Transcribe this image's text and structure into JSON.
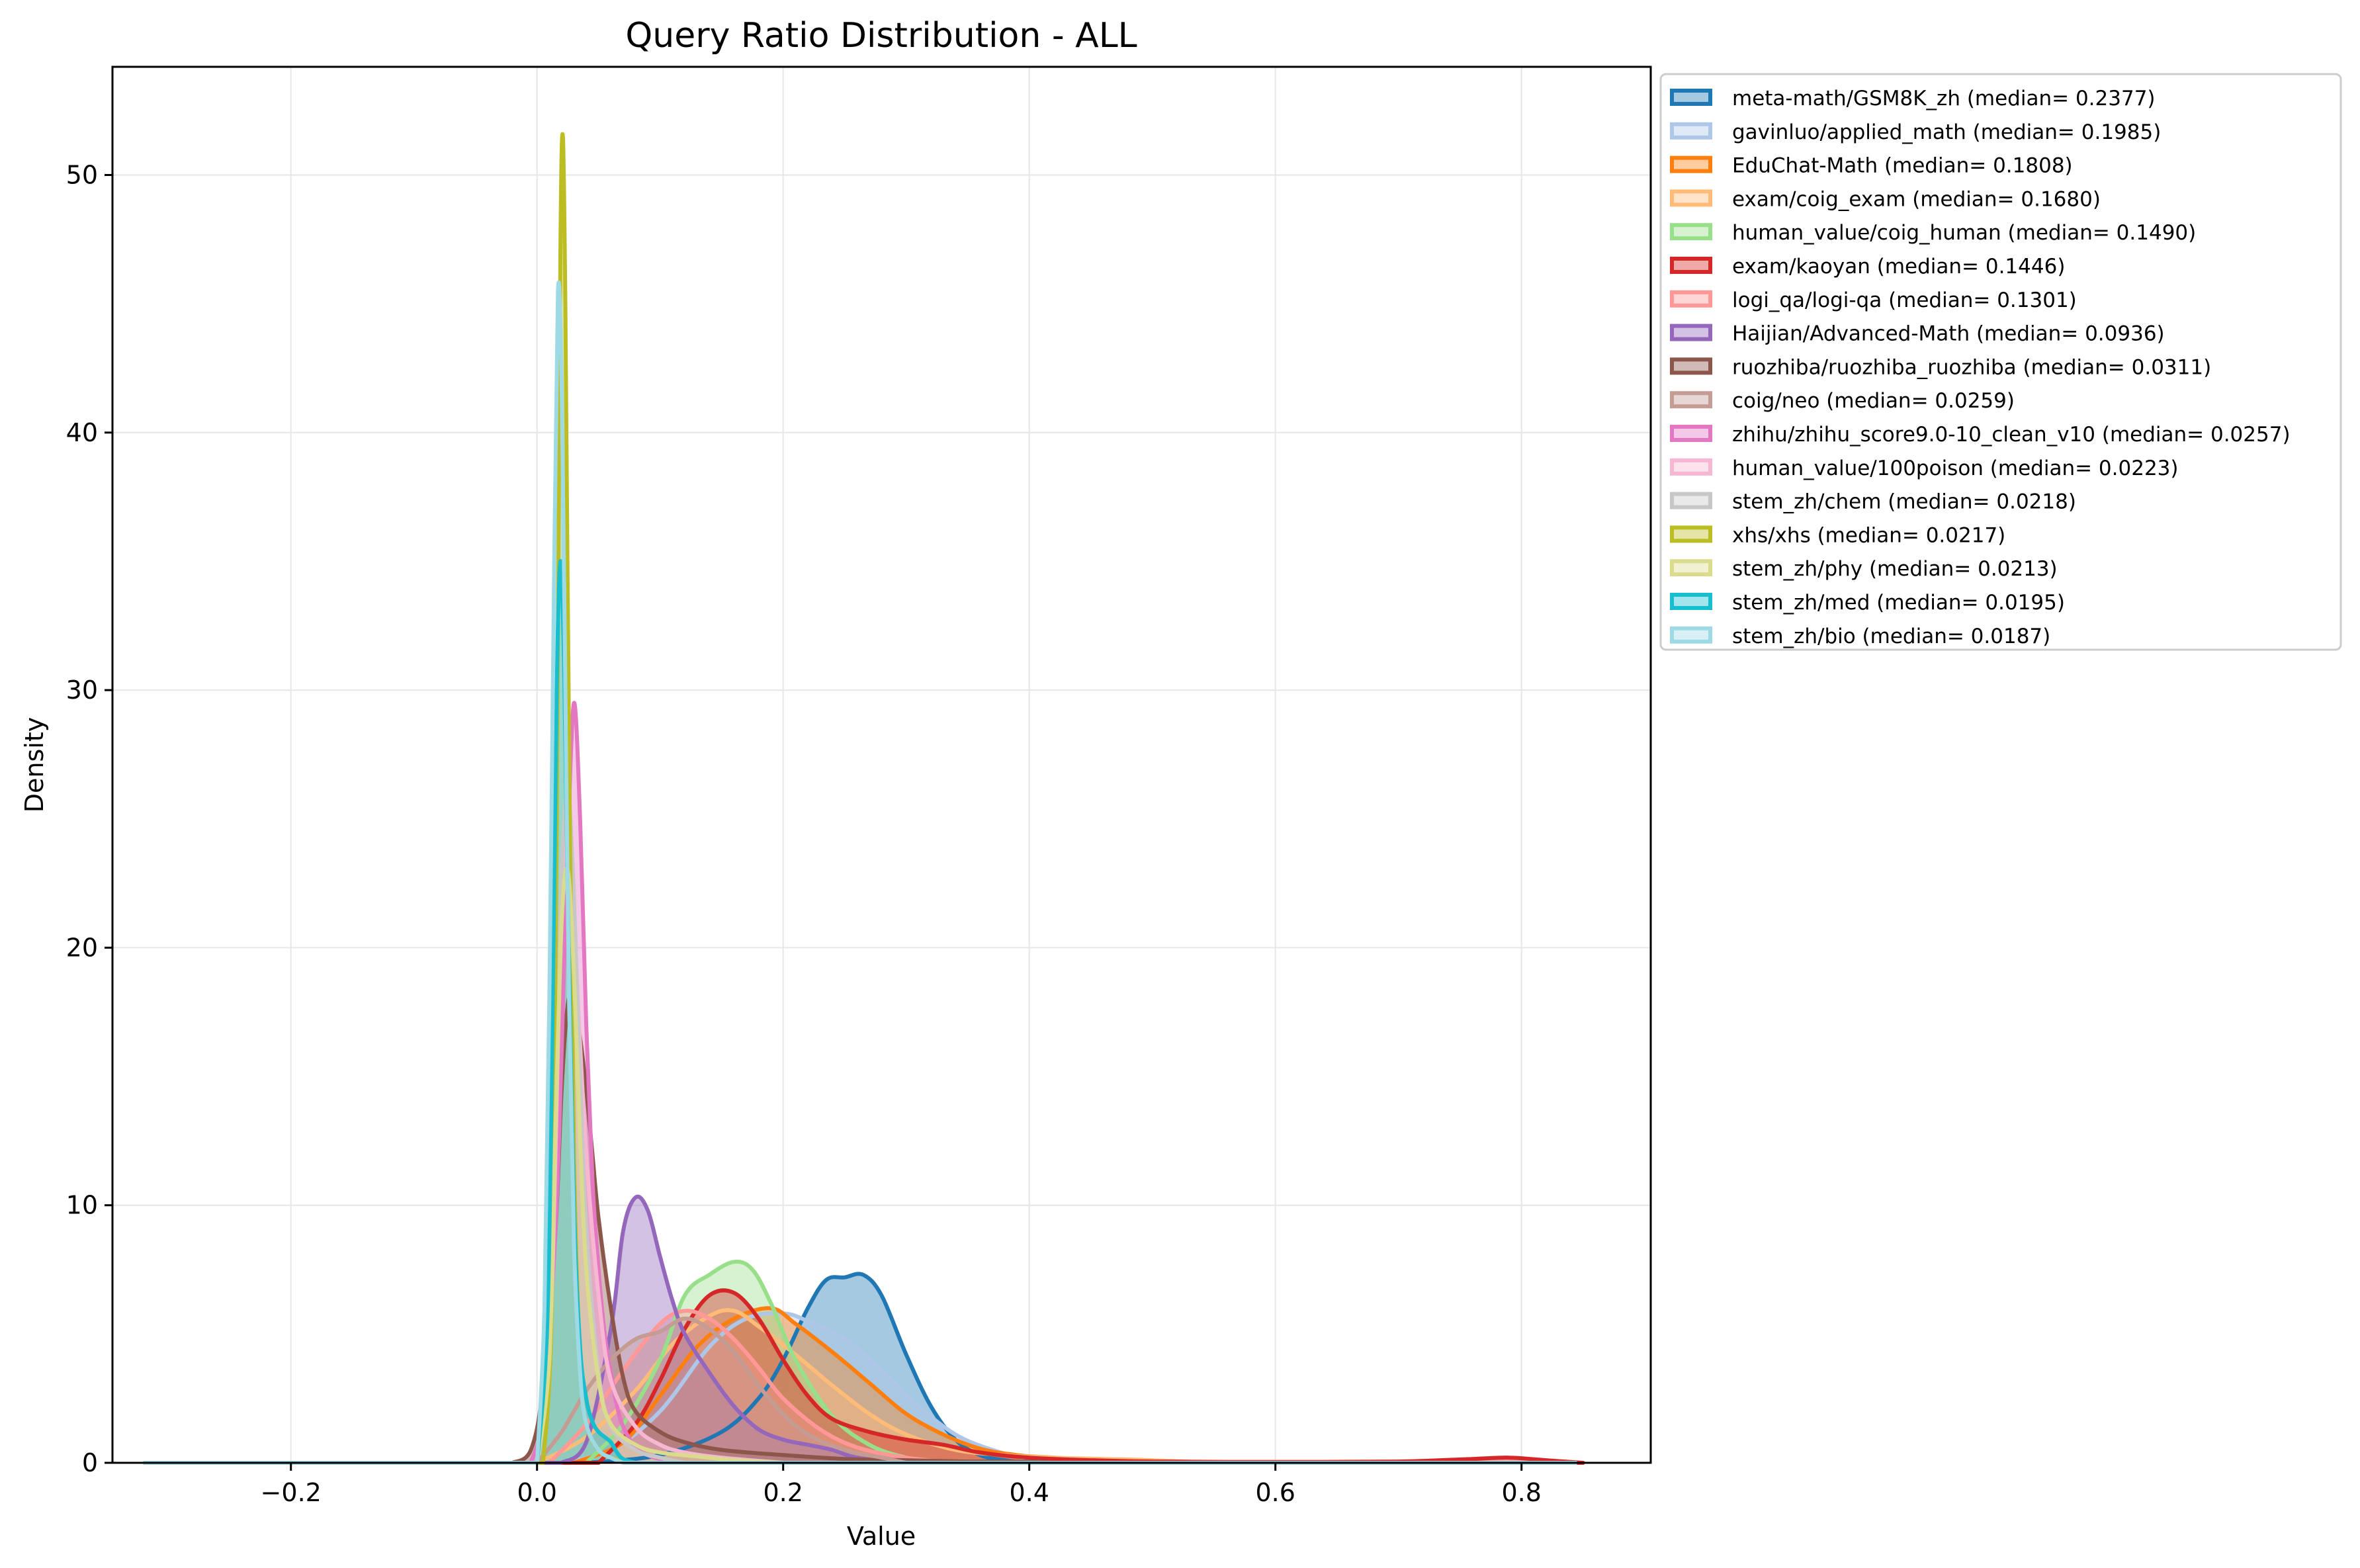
{
  "chart_data": {
    "type": "area",
    "title": "Query Ratio Distribution - ALL",
    "xlabel": "Value",
    "ylabel": "Density",
    "xlim": [
      -0.345,
      0.905
    ],
    "ylim": [
      0,
      54.2
    ],
    "xticks": [
      -0.2,
      0.0,
      0.2,
      0.4,
      0.6,
      0.8
    ],
    "xtick_labels": [
      "−0.2",
      "0.0",
      "0.2",
      "0.4",
      "0.6",
      "0.8"
    ],
    "yticks": [
      0,
      10,
      20,
      30,
      40,
      50
    ],
    "ytick_labels": [
      "0",
      "10",
      "20",
      "30",
      "40",
      "50"
    ],
    "grid": true,
    "legend_position": "outside-upper-right",
    "series": [
      {
        "name": "meta-math/GSM8K_zh (median= 0.2377)",
        "color": "#1f77b4",
        "x": [
          0.04,
          0.1,
          0.15,
          0.18,
          0.2,
          0.22,
          0.235,
          0.25,
          0.265,
          0.28,
          0.3,
          0.32,
          0.34,
          0.36,
          0.38,
          0.4
        ],
        "y": [
          0,
          0.3,
          1.2,
          2.5,
          4.0,
          6.0,
          7.1,
          7.2,
          7.3,
          6.5,
          4.2,
          2.2,
          0.9,
          0.3,
          0.1,
          0
        ]
      },
      {
        "name": "gavinluo/applied_math (median= 0.1985)",
        "color": "#aec7e8",
        "x": [
          0.02,
          0.06,
          0.1,
          0.14,
          0.17,
          0.2,
          0.22,
          0.25,
          0.28,
          0.31,
          0.34,
          0.37,
          0.4,
          0.43
        ],
        "y": [
          0,
          0.5,
          2.0,
          4.5,
          5.6,
          5.8,
          5.5,
          4.8,
          3.6,
          2.2,
          1.1,
          0.5,
          0.15,
          0
        ]
      },
      {
        "name": "EduChat-Math (median= 0.1808)",
        "color": "#ff7f0e",
        "x": [
          0.03,
          0.07,
          0.1,
          0.13,
          0.16,
          0.19,
          0.21,
          0.24,
          0.27,
          0.3,
          0.33,
          0.36,
          0.39,
          0.42,
          0.46,
          0.5
        ],
        "y": [
          0,
          0.8,
          2.6,
          4.5,
          5.6,
          6.0,
          5.4,
          4.3,
          3.1,
          1.9,
          1.1,
          0.55,
          0.3,
          0.2,
          0.1,
          0
        ]
      },
      {
        "name": "exam/coig_exam (median= 0.1680)",
        "color": "#ffbb78",
        "x": [
          0.0,
          0.04,
          0.08,
          0.11,
          0.14,
          0.16,
          0.18,
          0.21,
          0.24,
          0.27,
          0.3,
          0.34,
          0.38,
          0.42,
          0.46,
          0.5,
          0.55
        ],
        "y": [
          0,
          1.0,
          2.8,
          4.6,
          5.7,
          5.9,
          5.3,
          4.2,
          3.0,
          1.9,
          1.1,
          0.5,
          0.3,
          0.2,
          0.15,
          0.1,
          0
        ]
      },
      {
        "name": "human_value/coig_human (median= 0.1490)",
        "color": "#98df8a",
        "x": [
          0.04,
          0.07,
          0.1,
          0.12,
          0.14,
          0.16,
          0.175,
          0.19,
          0.21,
          0.24,
          0.27,
          0.3,
          0.33
        ],
        "y": [
          0,
          1.5,
          4.0,
          6.5,
          7.3,
          7.8,
          7.5,
          6.2,
          4.0,
          1.8,
          0.7,
          0.2,
          0
        ]
      },
      {
        "name": "exam/kaoyan (median= 0.1446)",
        "color": "#d62728",
        "x": [
          0.05,
          0.08,
          0.1,
          0.12,
          0.14,
          0.16,
          0.18,
          0.2,
          0.22,
          0.24,
          0.27,
          0.3,
          0.33,
          0.36,
          0.4,
          0.45,
          0.5,
          0.6,
          0.7,
          0.76,
          0.79,
          0.82,
          0.85
        ],
        "y": [
          0,
          1.5,
          3.2,
          5.2,
          6.5,
          6.6,
          5.6,
          4.0,
          2.6,
          1.7,
          1.2,
          0.9,
          0.7,
          0.4,
          0.2,
          0.1,
          0.05,
          0.03,
          0.05,
          0.15,
          0.2,
          0.1,
          0
        ]
      },
      {
        "name": "logi_qa/logi-qa (median= 0.1301)",
        "color": "#ff9896",
        "x": [
          0.01,
          0.04,
          0.07,
          0.1,
          0.12,
          0.14,
          0.16,
          0.18,
          0.2,
          0.23,
          0.26,
          0.3,
          0.34
        ],
        "y": [
          0,
          1.5,
          3.6,
          5.4,
          5.9,
          5.6,
          4.8,
          3.7,
          2.5,
          1.3,
          0.6,
          0.2,
          0
        ]
      },
      {
        "name": "Haijian/Advanced-Math (median= 0.0936)",
        "color": "#9467bd",
        "x": [
          0.02,
          0.04,
          0.06,
          0.07,
          0.08,
          0.09,
          0.1,
          0.11,
          0.12,
          0.14,
          0.16,
          0.18,
          0.2,
          0.22,
          0.24,
          0.26,
          0.3
        ],
        "y": [
          0,
          0.8,
          5.2,
          9.0,
          10.3,
          9.8,
          8.0,
          6.3,
          5.0,
          3.5,
          2.2,
          1.3,
          0.9,
          0.7,
          0.5,
          0.2,
          0
        ]
      },
      {
        "name": "ruozhiba/ruozhiba_ruozhiba (median= 0.0311)",
        "color": "#8c564b",
        "x": [
          -0.02,
          -0.005,
          0.005,
          0.015,
          0.02,
          0.025,
          0.03,
          0.035,
          0.04,
          0.045,
          0.05,
          0.06,
          0.07,
          0.08,
          0.1,
          0.12,
          0.15,
          0.2,
          0.25,
          0.3,
          0.35,
          0.4,
          0.42
        ],
        "y": [
          0,
          0.5,
          3.0,
          9.0,
          14.5,
          17.8,
          18.0,
          16.5,
          14.5,
          12.0,
          9.5,
          6.0,
          3.3,
          2.0,
          1.2,
          0.8,
          0.5,
          0.3,
          0.15,
          0.1,
          0.05,
          0.05,
          0
        ]
      },
      {
        "name": "coig/neo (median= 0.0259)",
        "color": "#c49c94",
        "x": [
          0.0,
          0.02,
          0.04,
          0.06,
          0.08,
          0.1,
          0.12,
          0.14,
          0.16,
          0.18,
          0.2,
          0.22,
          0.25,
          0.28,
          0.3
        ],
        "y": [
          0,
          1.2,
          2.8,
          4.0,
          4.8,
          5.1,
          5.6,
          5.2,
          4.3,
          3.0,
          1.9,
          1.1,
          0.5,
          0.2,
          0
        ]
      },
      {
        "name": "zhihu/zhihu_score9.0-10_clean_v10 (median= 0.0257)",
        "color": "#e377c2",
        "x": [
          -0.005,
          0.005,
          0.015,
          0.02,
          0.025,
          0.03,
          0.035,
          0.04,
          0.045,
          0.05,
          0.055,
          0.06,
          0.065,
          0.07,
          0.08,
          0.09,
          0.1,
          0.12
        ],
        "y": [
          0,
          2.0,
          9.0,
          16.0,
          24.0,
          29.5,
          25.0,
          17.0,
          11.0,
          7.5,
          5.0,
          3.5,
          2.2,
          1.4,
          0.6,
          0.3,
          0.15,
          0
        ]
      },
      {
        "name": "human_value/100poison (median= 0.0223)",
        "color": "#f7b6d2",
        "x": [
          0.0,
          0.01,
          0.015,
          0.02,
          0.025,
          0.03,
          0.04,
          0.05,
          0.06,
          0.08,
          0.1,
          0.12,
          0.15,
          0.2
        ],
        "y": [
          0,
          4.0,
          12.0,
          22.0,
          26.0,
          21.0,
          12.0,
          6.5,
          3.2,
          1.4,
          0.7,
          0.4,
          0.2,
          0
        ]
      },
      {
        "name": "stem_zh/chem (median= 0.0218)",
        "color": "#c7c7c7",
        "x": [
          0.0,
          0.01,
          0.015,
          0.02,
          0.025,
          0.03,
          0.035,
          0.04,
          0.05,
          0.06,
          0.08,
          0.1,
          0.12
        ],
        "y": [
          0,
          5.0,
          15.0,
          23.0,
          26.0,
          22.0,
          15.0,
          9.0,
          3.5,
          1.4,
          0.5,
          0.2,
          0
        ]
      },
      {
        "name": "xhs/xhs (median= 0.0217)",
        "color": "#bcbd22",
        "x": [
          0.005,
          0.012,
          0.016,
          0.019,
          0.021,
          0.023,
          0.026,
          0.03,
          0.035,
          0.04,
          0.05,
          0.06,
          0.07,
          0.08
        ],
        "y": [
          0,
          6.0,
          25.0,
          47.0,
          51.5,
          45.0,
          28.0,
          12.0,
          4.0,
          1.5,
          0.5,
          0.2,
          0.1,
          0
        ]
      },
      {
        "name": "stem_zh/phy (median= 0.0213)",
        "color": "#dbdb8d",
        "x": [
          0.0,
          0.01,
          0.015,
          0.02,
          0.025,
          0.03,
          0.035,
          0.04,
          0.05,
          0.06,
          0.08,
          0.1,
          0.13,
          0.16,
          0.2
        ],
        "y": [
          0,
          4.0,
          13.0,
          21.0,
          23.0,
          19.0,
          12.5,
          7.5,
          3.2,
          1.5,
          0.7,
          0.4,
          0.25,
          0.1,
          0
        ]
      },
      {
        "name": "stem_zh/med (median= 0.0195)",
        "color": "#17becf",
        "x": [
          0.0,
          0.008,
          0.012,
          0.016,
          0.019,
          0.022,
          0.025,
          0.03,
          0.035,
          0.04,
          0.045,
          0.05,
          0.055,
          0.06,
          0.065,
          0.07,
          0.08
        ],
        "y": [
          0,
          5.0,
          15.0,
          30.0,
          35.0,
          31.0,
          22.0,
          10.0,
          4.5,
          2.5,
          1.6,
          1.2,
          1.0,
          0.8,
          0.4,
          0.15,
          0
        ]
      },
      {
        "name": "stem_zh/bio (median= 0.0187)",
        "color": "#9edae5",
        "x": [
          0.0,
          0.006,
          0.01,
          0.014,
          0.017,
          0.02,
          0.023,
          0.026,
          0.03,
          0.035,
          0.04,
          0.05,
          0.06,
          0.07
        ],
        "y": [
          0,
          6.0,
          18.0,
          35.0,
          45.5,
          42.0,
          30.0,
          18.0,
          8.5,
          3.5,
          1.5,
          0.5,
          0.2,
          0
        ]
      }
    ]
  }
}
